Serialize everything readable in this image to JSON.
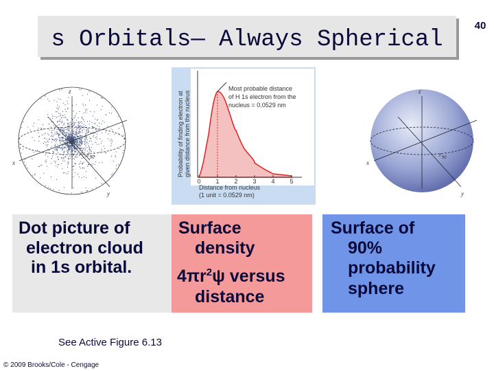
{
  "slide": {
    "title": "s Orbitals— Always Spherical",
    "page_number": "40",
    "left_figure": {
      "z": "z",
      "x": "x",
      "y": "y",
      "radius": "r",
      "radius_sub": "90"
    },
    "middle_figure": {
      "y_axis_label": [
        "Probability of finding electron at",
        "given distance from the nucleus"
      ],
      "annotation": [
        "Most probable distance",
        "of H 1s electron from the",
        "nucleus = 0.0529 nm"
      ],
      "xticks": [
        0,
        1,
        2,
        3,
        4,
        5
      ],
      "x_axis_label": [
        "Distance from nucleus",
        "(1 unit = 0.0529 nm)"
      ]
    },
    "right_figure": {
      "z": "z",
      "x": "x",
      "y": "y",
      "radius": "r",
      "radius_sub": "90"
    },
    "left_caption": [
      "Dot picture of",
      "electron cloud",
      "in 1s orbital."
    ],
    "middle_caption": {
      "line1": "Surface",
      "line2": "density",
      "line3_before": "4πr",
      "line3_sup": "2",
      "line3_after": "ψ versus",
      "line4": "distance"
    },
    "right_caption": [
      "Surface of",
      "90%",
      "probability",
      "sphere"
    ],
    "reference": "See Active Figure 6.13",
    "copyright": "© 2009 Brooks/Cole - Cengage"
  }
}
